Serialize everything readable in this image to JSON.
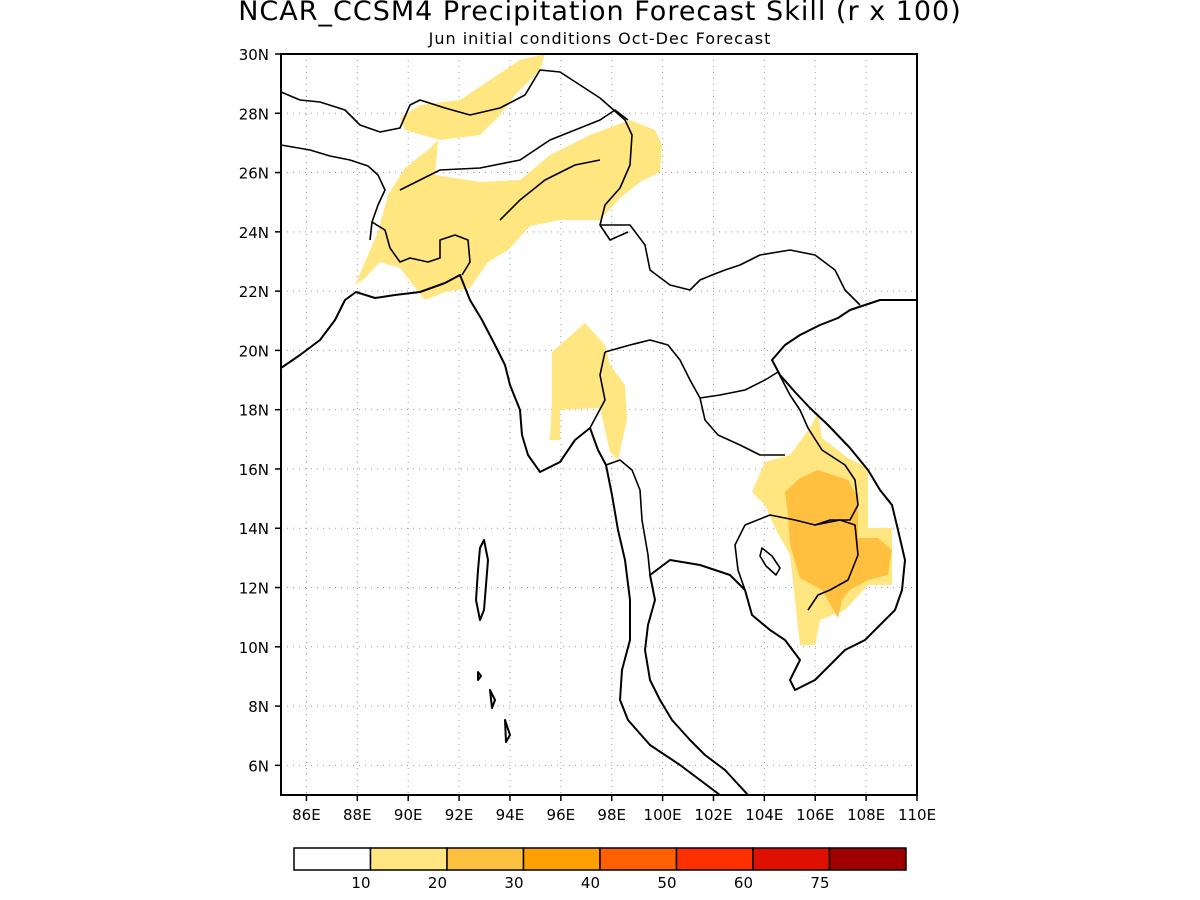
{
  "map": {
    "title": "NCAR_CCSM4 Precipitation Forecast Skill (r x 100)",
    "subtitle": "Jun initial conditions  Oct-Dec Forecast",
    "lat_labels": [
      "30N",
      "28N",
      "26N",
      "24N",
      "22N",
      "20N",
      "18N",
      "16N",
      "14N",
      "12N",
      "10N",
      "8N",
      "6N"
    ],
    "lat_values": [
      30,
      28,
      26,
      24,
      22,
      20,
      18,
      16,
      14,
      12,
      10,
      8,
      6
    ],
    "lon_labels": [
      "86E",
      "88E",
      "90E",
      "92E",
      "94E",
      "96E",
      "98E",
      "100E",
      "102E",
      "104E",
      "106E",
      "108E",
      "110E"
    ],
    "lon_values": [
      86,
      88,
      90,
      92,
      94,
      96,
      98,
      100,
      102,
      104,
      106,
      108,
      110
    ],
    "extent": {
      "lon_min": 85,
      "lon_max": 110,
      "lat_min": 5,
      "lat_max": 30
    },
    "grid": true
  },
  "colorbar": {
    "colors": [
      "#ffffff",
      "#ffe680",
      "#ffc040",
      "#ffa000",
      "#ff6000",
      "#ff3000",
      "#e01000",
      "#a00000"
    ],
    "labels": [
      "10",
      "20",
      "30",
      "40",
      "50",
      "60",
      "75"
    ]
  }
}
